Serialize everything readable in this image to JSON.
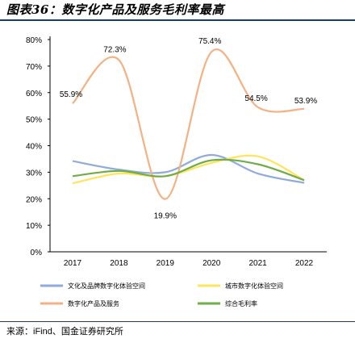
{
  "header": {
    "title": "图表36：数字化产品及服务毛利率最高"
  },
  "footer": {
    "source": "来源：iFind、国金证券研究所"
  },
  "chart_data": {
    "type": "line",
    "title": "图表36：数字化产品及服务毛利率最高",
    "xlabel": "",
    "ylabel": "",
    "x": [
      "2017",
      "2018",
      "2019",
      "2020",
      "2021",
      "2022"
    ],
    "ylim": [
      0,
      80
    ],
    "yticks": [
      "0%",
      "10%",
      "20%",
      "30%",
      "40%",
      "50%",
      "60%",
      "70%",
      "80%"
    ],
    "grid": false,
    "legend_position": "bottom",
    "series": [
      {
        "name": "文化及品牌数字化体验空间",
        "color": "#8faadc",
        "values": [
          34.2,
          31.0,
          30.0,
          36.5,
          29.5,
          26.0
        ]
      },
      {
        "name": "城市数字化体验空间",
        "color": "#ffe45c",
        "values": [
          25.8,
          29.5,
          28.5,
          33.5,
          36.0,
          27.0
        ]
      },
      {
        "name": "数字化产品及服务",
        "color": "#f4b183",
        "values": [
          55.9,
          72.3,
          19.9,
          75.4,
          54.5,
          53.9
        ],
        "labels": [
          "55.9%",
          "72.3%",
          "19.9%",
          "75.4%",
          "54.5%",
          "53.9%"
        ]
      },
      {
        "name": "综合毛利率",
        "color": "#70ad47",
        "values": [
          28.5,
          30.5,
          28.5,
          34.5,
          33.0,
          27.0
        ]
      }
    ]
  }
}
